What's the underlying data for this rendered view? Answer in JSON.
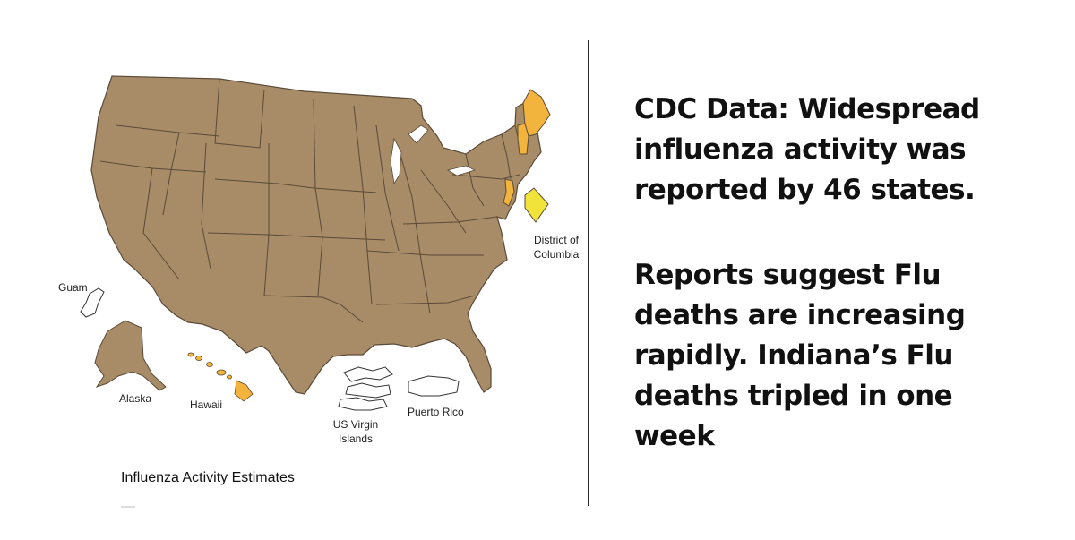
{
  "map": {
    "labels": {
      "dc": [
        "District of",
        "Columbia"
      ],
      "guam": "Guam",
      "alaska": "Alaska",
      "hawaii": "Hawaii",
      "usvi": [
        "US Virgin",
        "Islands"
      ],
      "puerto_rico": "Puerto Rico"
    },
    "legend_title": "Influenza Activity Estimates",
    "colors": {
      "widespread": "#a88c67",
      "regional": "#f2b43c",
      "local": "#f2e33a",
      "no_data": "#ffffff",
      "border": "#5a4a38"
    },
    "states": {
      "widespread": "most states",
      "regional": [
        "Maine",
        "New Hampshire",
        "New Jersey",
        "Hawaii"
      ],
      "local": [
        "District of Columbia"
      ]
    }
  },
  "headline": {
    "line1": "CDC Data: Widespread",
    "line2": "influenza activity was",
    "line3": "reported by 46 states."
  },
  "body": {
    "line1": "Reports suggest Flu",
    "line2": "deaths are increasing",
    "line3": "rapidly. Indiana’s Flu",
    "line4": "deaths tripled in one",
    "line5": "week"
  }
}
